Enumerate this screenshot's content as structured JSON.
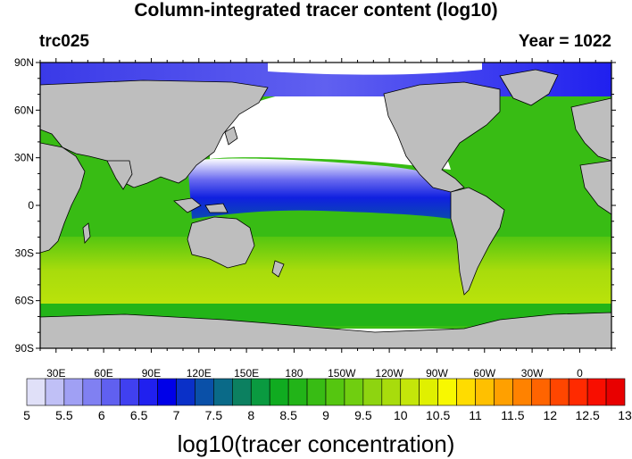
{
  "header": {
    "title": "Column-integrated tracer content (log10)",
    "left_label": "trc025",
    "right_label": "Year = 1022"
  },
  "map": {
    "projection": "cylindrical-equidistant",
    "lon_range": [
      20,
      380
    ],
    "lat_range": [
      -90,
      90
    ],
    "lat_labels": [
      "90N",
      "60N",
      "30N",
      "0",
      "30S",
      "60S",
      "90S"
    ],
    "lon_labels": [
      "30E",
      "60E",
      "90E",
      "120E",
      "150E",
      "180",
      "150W",
      "120W",
      "90W",
      "60W",
      "30W",
      "0"
    ],
    "land_color": "#bebebe",
    "missing_color": "#ffffff"
  },
  "colorbar": {
    "title": "log10(tracer concentration)",
    "labels": [
      "5",
      "5.5",
      "6",
      "6.5",
      "7",
      "7.5",
      "8",
      "8.5",
      "9",
      "9.5",
      "10",
      "10.5",
      "11",
      "11.5",
      "12",
      "12.5",
      "13"
    ],
    "colors": [
      "#e0e0f8",
      "#c0c0f6",
      "#a0a0f4",
      "#8080f2",
      "#6060f0",
      "#4040f0",
      "#2020ef",
      "#0000e8",
      "#0a30c8",
      "#0a50a8",
      "#0a6a88",
      "#0c8060",
      "#0a9a40",
      "#10ab20",
      "#22b418",
      "#38bc14",
      "#55c610",
      "#70ce10",
      "#8ed410",
      "#a8dc0c",
      "#c4e60a",
      "#e0f000",
      "#f8f800",
      "#ffdc00",
      "#ffc000",
      "#ffa000",
      "#ff8200",
      "#ff6400",
      "#ff4600",
      "#ff2a00",
      "#f80e00",
      "#e80000"
    ]
  }
}
